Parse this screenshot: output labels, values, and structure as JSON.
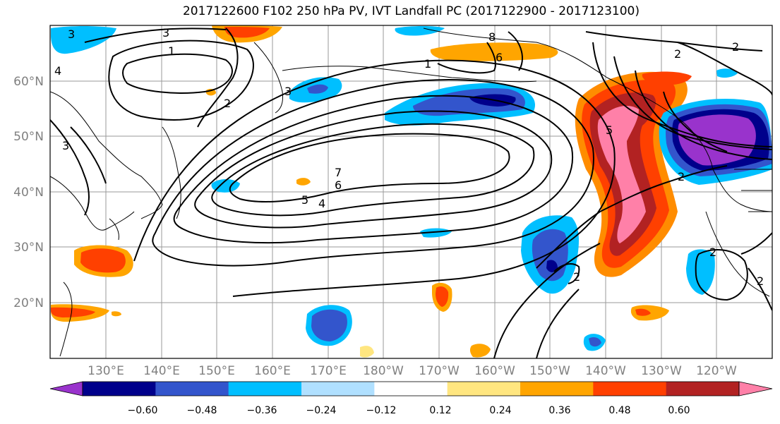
{
  "title": "2017122600 F102 250 hPa PV, IVT Landfall PC (2017122900 - 2017123100)",
  "lat_labels": [
    "60°N",
    "50°N",
    "40°N",
    "30°N",
    "20°N"
  ],
  "lon_labels": [
    "130°E",
    "140°E",
    "150°E",
    "160°E",
    "170°E",
    "180°W",
    "170°W",
    "160°W",
    "150°W",
    "140°W",
    "130°W",
    "120°W"
  ],
  "colorbar": {
    "ticks": [
      "−0.60",
      "−0.48",
      "−0.36",
      "−0.24",
      "−0.12",
      "0.12",
      "0.24",
      "0.36",
      "0.48",
      "0.60"
    ],
    "colors": [
      "#9933cc",
      "#00008b",
      "#3355cc",
      "#00bfff",
      "#b0e0ff",
      "#ffffff",
      "#ffe680",
      "#ffa500",
      "#ff4000",
      "#b22222",
      "#ff80a8"
    ]
  },
  "pv_contour_labels": [
    "3",
    "3",
    "1",
    "2",
    "3",
    "8",
    "6",
    "7",
    "6",
    "5",
    "4",
    "3",
    "4",
    "2",
    "1",
    "5",
    "2",
    "2",
    "2",
    "1",
    "2",
    "2"
  ]
}
